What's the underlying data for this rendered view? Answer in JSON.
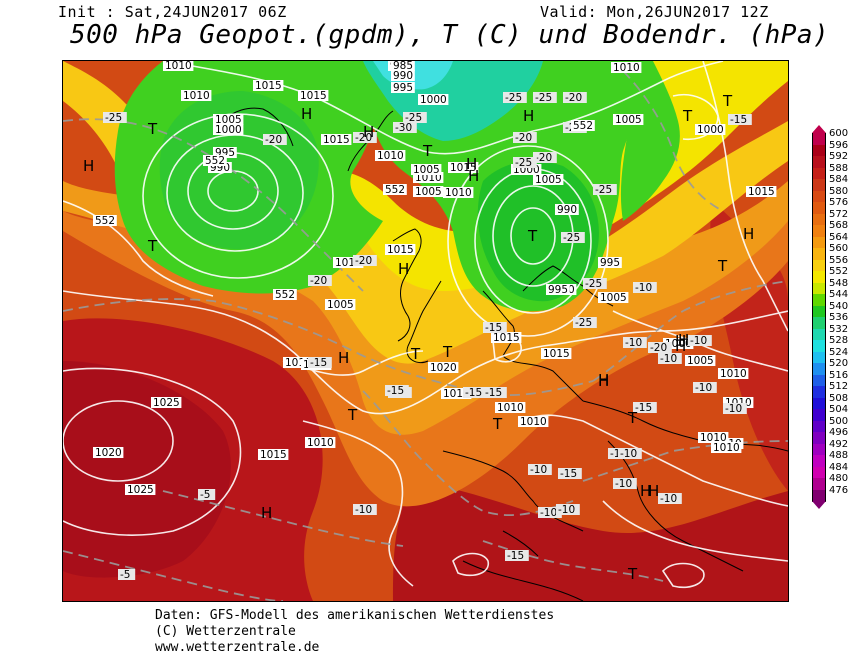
{
  "header": {
    "init": "Init : Sat,24JUN2017 06Z",
    "valid": "Valid: Mon,26JUN2017 12Z",
    "title": "500 hPa Geopot.(gpdm), T (C) und Bodendr. (hPa)"
  },
  "legend": {
    "values": [
      "600",
      "596",
      "592",
      "588",
      "584",
      "580",
      "576",
      "572",
      "568",
      "564",
      "560",
      "556",
      "552",
      "548",
      "544",
      "540",
      "536",
      "532",
      "528",
      "524",
      "520",
      "516",
      "512",
      "508",
      "504",
      "500",
      "496",
      "492",
      "488",
      "484",
      "480",
      "476"
    ],
    "colors": [
      "#c0004c",
      "#aa0018",
      "#b8101c",
      "#c52018",
      "#cc3818",
      "#d84a14",
      "#e05a10",
      "#e86e10",
      "#f08010",
      "#f49a10",
      "#f8b410",
      "#f8d010",
      "#f4e800",
      "#c8e800",
      "#60d800",
      "#20c820",
      "#20d070",
      "#20d8b0",
      "#20e0e0",
      "#20c0f0",
      "#2090f0",
      "#2060e8",
      "#2030e0",
      "#2010d8",
      "#4000d0",
      "#6000c8",
      "#8000c0",
      "#a000c0",
      "#c000c0",
      "#d000b0",
      "#b00090",
      "#800070"
    ]
  },
  "map": {
    "pressure_labels": [
      {
        "text": "1010"
      },
      {
        "text": "1015"
      },
      {
        "text": "1015"
      },
      {
        "text": "1010"
      },
      {
        "text": "1005"
      },
      {
        "text": "1000"
      },
      {
        "text": "995"
      },
      {
        "text": "990"
      },
      {
        "text": "985"
      },
      {
        "text": "1015"
      },
      {
        "text": "1010"
      },
      {
        "text": "1015"
      },
      {
        "text": "1015"
      },
      {
        "text": "1010"
      },
      {
        "text": "1020"
      },
      {
        "text": "1025"
      },
      {
        "text": "1025"
      },
      {
        "text": "1020"
      },
      {
        "text": "985"
      },
      {
        "text": "990"
      },
      {
        "text": "995"
      },
      {
        "text": "1000"
      },
      {
        "text": "1005"
      },
      {
        "text": "1010"
      },
      {
        "text": "1015"
      },
      {
        "text": "1010"
      },
      {
        "text": "1005"
      },
      {
        "text": "1000"
      },
      {
        "text": "995"
      },
      {
        "text": "990"
      },
      {
        "text": "1000"
      },
      {
        "text": "995"
      },
      {
        "text": "1005"
      },
      {
        "text": "1010"
      },
      {
        "text": "1015"
      },
      {
        "text": "1010"
      },
      {
        "text": "1015"
      },
      {
        "text": "1015"
      },
      {
        "text": "1010"
      },
      {
        "text": "1010"
      },
      {
        "text": "1010"
      },
      {
        "text": "1010"
      },
      {
        "text": "1015"
      },
      {
        "text": "1010"
      },
      {
        "text": "1005"
      },
      {
        "text": "1010"
      },
      {
        "text": "1000"
      },
      {
        "text": "1005"
      },
      {
        "text": "1015"
      },
      {
        "text": "1005"
      },
      {
        "text": "1000"
      },
      {
        "text": "1005"
      },
      {
        "text": "1010"
      },
      {
        "text": "1010"
      }
    ],
    "temp_labels": [
      {
        "text": "-25"
      },
      {
        "text": "-25"
      },
      {
        "text": "-20"
      },
      {
        "text": "-20"
      },
      {
        "text": "-25"
      },
      {
        "text": "-20"
      },
      {
        "text": "-20"
      },
      {
        "text": "-20"
      },
      {
        "text": "-20"
      },
      {
        "text": "-25"
      },
      {
        "text": "-30"
      },
      {
        "text": "-25"
      },
      {
        "text": "-25"
      },
      {
        "text": "-25"
      },
      {
        "text": "-20"
      },
      {
        "text": "-25"
      },
      {
        "text": "-25"
      },
      {
        "text": "-20"
      },
      {
        "text": "-15"
      },
      {
        "text": "-15"
      },
      {
        "text": "-20"
      },
      {
        "text": "-15"
      },
      {
        "text": "-10"
      },
      {
        "text": "-10"
      },
      {
        "text": "-10"
      },
      {
        "text": "-10"
      },
      {
        "text": "-15"
      },
      {
        "text": "-15"
      },
      {
        "text": "-15"
      },
      {
        "text": "-15"
      },
      {
        "text": "-10"
      },
      {
        "text": "-15"
      },
      {
        "text": "-10"
      },
      {
        "text": "-10"
      },
      {
        "text": "-10"
      },
      {
        "text": "-10"
      },
      {
        "text": "-10"
      },
      {
        "text": "-10"
      },
      {
        "text": "-10"
      },
      {
        "text": "-5"
      },
      {
        "text": "-5"
      },
      {
        "text": "-10"
      },
      {
        "text": "-10"
      },
      {
        "text": "-15"
      },
      {
        "text": "-15"
      }
    ],
    "geo_labels": [
      {
        "text": "552"
      },
      {
        "text": "552"
      },
      {
        "text": "552"
      },
      {
        "text": "552"
      },
      {
        "text": "552"
      }
    ],
    "centers": [
      {
        "text": "H"
      },
      {
        "text": "T"
      },
      {
        "text": "T"
      },
      {
        "text": "H"
      },
      {
        "text": "H"
      },
      {
        "text": "H"
      },
      {
        "text": "T"
      },
      {
        "text": "H"
      },
      {
        "text": "H"
      },
      {
        "text": "T"
      },
      {
        "text": "T"
      },
      {
        "text": "T"
      },
      {
        "text": "H"
      },
      {
        "text": "H"
      },
      {
        "text": "T"
      },
      {
        "text": "H"
      },
      {
        "text": "H"
      },
      {
        "text": "T"
      },
      {
        "text": "H"
      },
      {
        "text": "T"
      },
      {
        "text": "H"
      },
      {
        "text": "H"
      },
      {
        "text": "H"
      },
      {
        "text": "T"
      },
      {
        "text": "H"
      },
      {
        "text": "H"
      },
      {
        "text": "T"
      },
      {
        "text": "T"
      },
      {
        "text": "H"
      },
      {
        "text": "T"
      }
    ]
  },
  "footer": {
    "line1": "Daten: GFS-Modell des amerikanischen Wetterdienstes",
    "line2": "(C) Wetterzentrale",
    "line3": "www.wetterzentrale.de"
  }
}
